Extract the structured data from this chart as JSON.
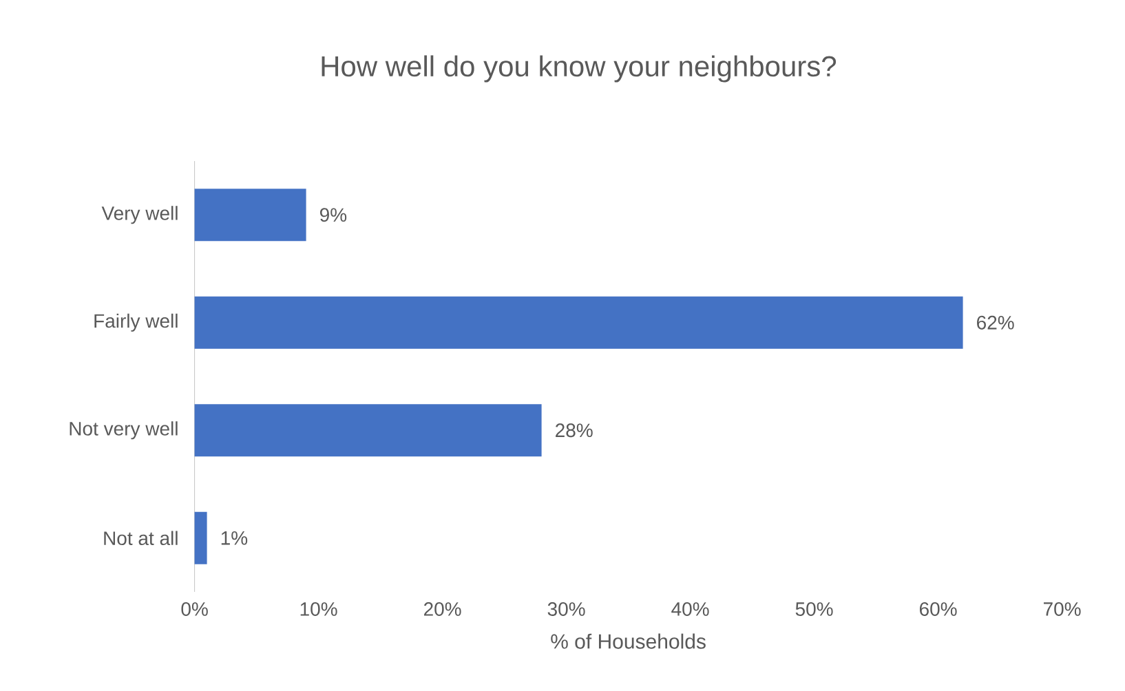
{
  "chart_data": {
    "type": "bar",
    "orientation": "horizontal",
    "title": "How well do you know your neighbours?",
    "xlabel": "% of Households",
    "categories": [
      "Very well",
      "Fairly well",
      "Not very well",
      "Not at all"
    ],
    "values": [
      9,
      62,
      28,
      1
    ],
    "value_labels": [
      "9%",
      "62%",
      "28%",
      "1%"
    ],
    "color": "#4472c4",
    "xlim": [
      0,
      70
    ],
    "xticks": [
      {
        "value": 0,
        "label": "0%"
      },
      {
        "value": 10,
        "label": "10%"
      },
      {
        "value": 20,
        "label": "20%"
      },
      {
        "value": 30,
        "label": "30%"
      },
      {
        "value": 40,
        "label": "40%"
      },
      {
        "value": 50,
        "label": "50%"
      },
      {
        "value": 60,
        "label": "60%"
      },
      {
        "value": 70,
        "label": "70%"
      }
    ],
    "legend": false,
    "grid": false
  }
}
